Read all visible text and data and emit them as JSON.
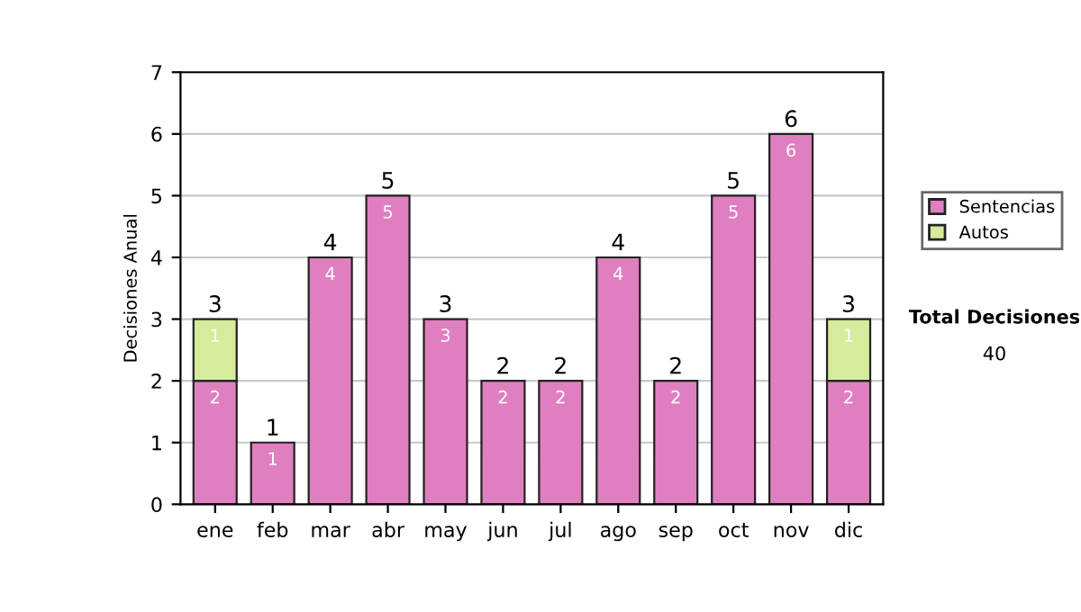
{
  "chart_data": {
    "type": "bar",
    "stacked": true,
    "ylabel": "Decisiones Anual",
    "categories": [
      "ene",
      "feb",
      "mar",
      "abr",
      "may",
      "jun",
      "jul",
      "ago",
      "sep",
      "oct",
      "nov",
      "dic"
    ],
    "series": [
      {
        "name": "Sentencias",
        "color": "#df7fc0",
        "values": [
          2,
          1,
          4,
          5,
          3,
          2,
          2,
          4,
          2,
          5,
          6,
          2
        ],
        "value_labels": [
          "2",
          "1",
          "4",
          "5",
          "3",
          "2",
          "2",
          "4",
          "2",
          "5",
          "6",
          "2"
        ]
      },
      {
        "name": "Autos",
        "color": "#d6eb9c",
        "values": [
          1,
          null,
          null,
          null,
          null,
          null,
          null,
          null,
          null,
          null,
          null,
          1
        ],
        "value_labels": [
          "1",
          null,
          null,
          null,
          null,
          null,
          null,
          null,
          null,
          null,
          null,
          "1"
        ]
      }
    ],
    "totals": [
      "3",
      "1",
      "4",
      "5",
      "3",
      "2",
      "2",
      "4",
      "2",
      "5",
      "6",
      "3"
    ],
    "ylim": [
      0,
      7
    ],
    "yticks": [
      0,
      1,
      2,
      3,
      4,
      5,
      6,
      7
    ],
    "grid": "y",
    "legend": "right",
    "annotations": [
      "Total Decisiones",
      "40"
    ]
  }
}
